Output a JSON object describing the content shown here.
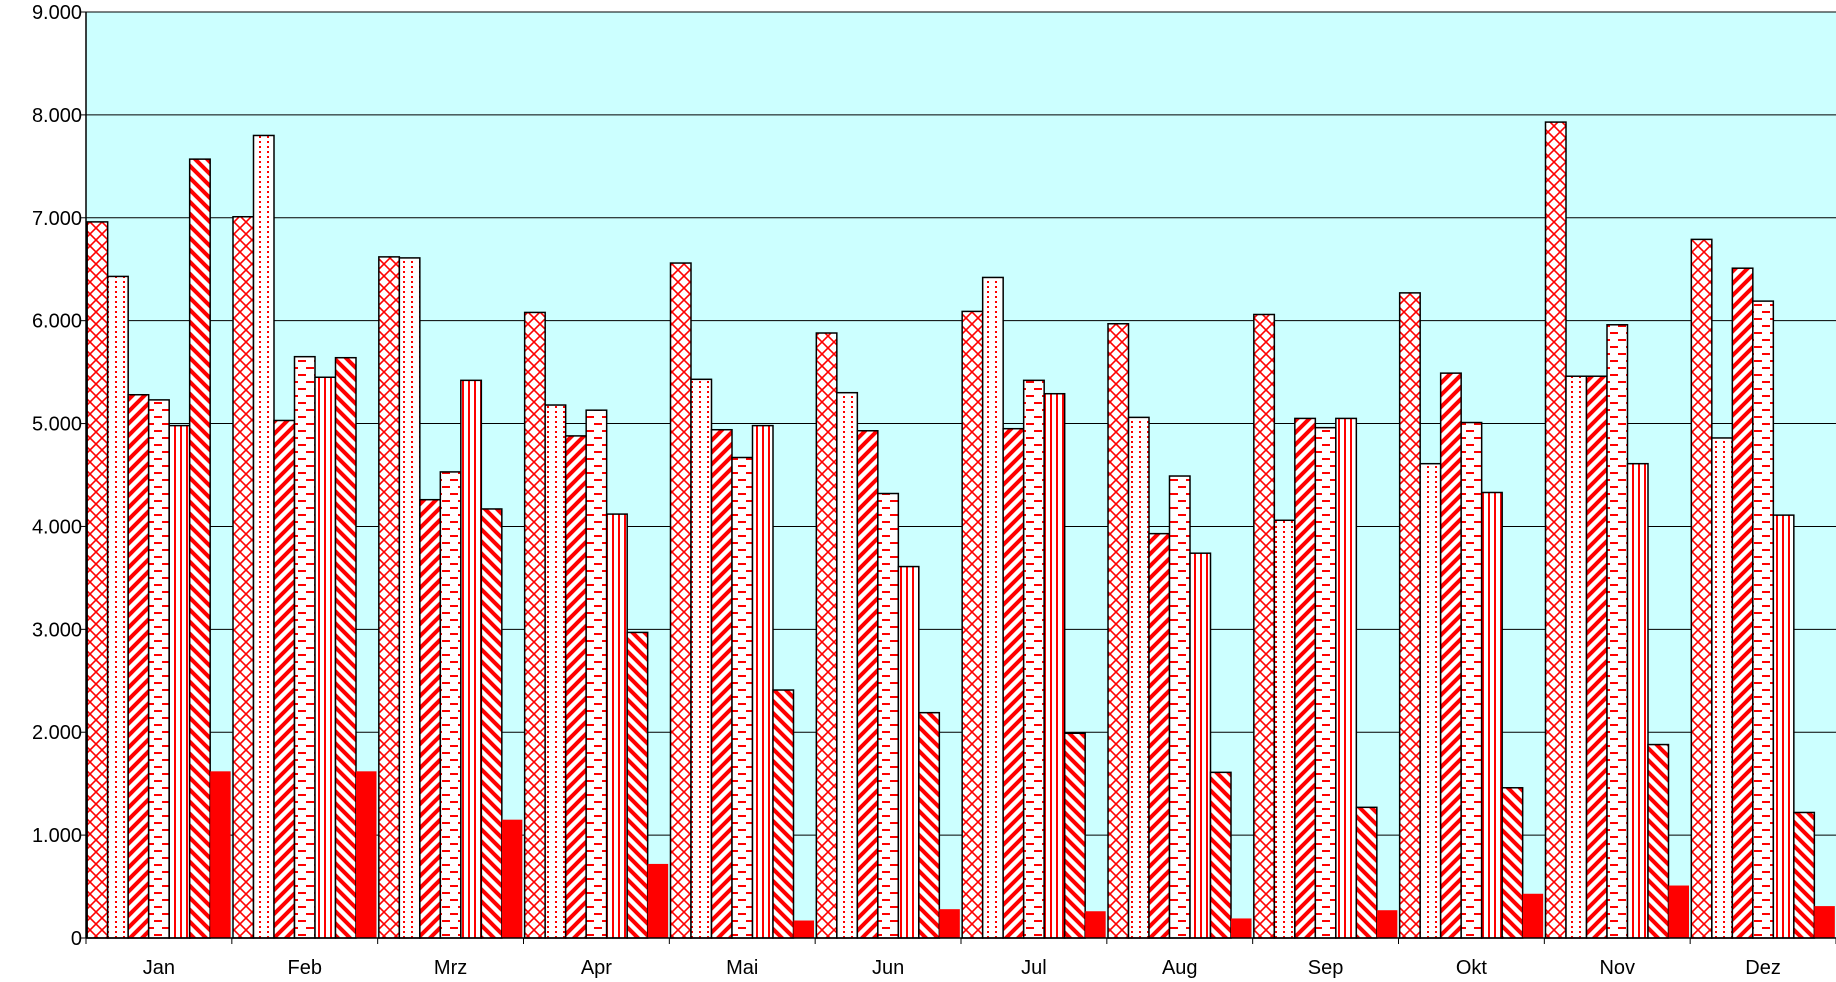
{
  "chart_data": {
    "type": "bar",
    "title": "",
    "xlabel": "",
    "ylabel": "",
    "ylim": [
      0,
      9000
    ],
    "yticks": [
      0,
      1000,
      2000,
      3000,
      4000,
      5000,
      6000,
      7000,
      8000,
      9000
    ],
    "ytick_labels": [
      "0",
      "1.000",
      "2.000",
      "3.000",
      "4.000",
      "5.000",
      "6.000",
      "7.000",
      "8.000",
      "9.000"
    ],
    "grid": true,
    "legend": "none",
    "plot_background": "#ccffff",
    "bar_color": "#ff0000",
    "categories": [
      "Jan",
      "Feb",
      "Mrz",
      "Apr",
      "Mai",
      "Jun",
      "Jul",
      "Aug",
      "Sep",
      "Okt",
      "Nov",
      "Dez"
    ],
    "series": [
      {
        "pattern": "crosshatch",
        "values": [
          6960,
          7010,
          6620,
          6080,
          6560,
          5880,
          6090,
          5970,
          6060,
          6270,
          7930,
          6790
        ]
      },
      {
        "pattern": "dots",
        "values": [
          6430,
          7800,
          6610,
          5180,
          5430,
          5300,
          6420,
          5060,
          4060,
          4610,
          5460,
          4860
        ]
      },
      {
        "pattern": "diagonal-up",
        "values": [
          5280,
          5030,
          4260,
          4880,
          4940,
          4930,
          4950,
          3930,
          5050,
          5490,
          5460,
          6510
        ]
      },
      {
        "pattern": "dashes",
        "values": [
          5230,
          5650,
          4530,
          5130,
          4670,
          4320,
          5420,
          4490,
          4960,
          5010,
          5960,
          6190
        ]
      },
      {
        "pattern": "vertical",
        "values": [
          4980,
          5450,
          5420,
          4120,
          4980,
          3610,
          5290,
          3740,
          5050,
          4330,
          4610,
          4110
        ]
      },
      {
        "pattern": "diagonal-down",
        "values": [
          7570,
          5640,
          4170,
          2970,
          2410,
          2190,
          1990,
          1610,
          1270,
          1460,
          1880,
          1220
        ]
      },
      {
        "pattern": "solid",
        "values": [
          1620,
          1620,
          1150,
          720,
          170,
          280,
          260,
          190,
          270,
          430,
          510,
          310
        ]
      }
    ]
  }
}
